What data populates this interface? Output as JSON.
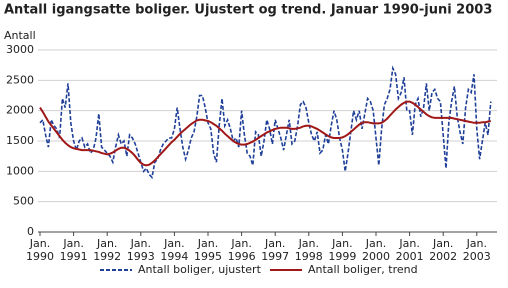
{
  "chart_data": {
    "type": "line",
    "title": "Antall igangsatte boliger. Ujustert og trend. Januar 1990-juni 2003",
    "y_label": "Antall",
    "categories": [
      "Jan. 1990",
      null,
      null,
      null,
      null,
      null,
      null,
      null,
      null,
      null,
      null,
      null,
      "Jan. 1991",
      null,
      null,
      null,
      null,
      null,
      null,
      null,
      null,
      null,
      null,
      null,
      "Jan. 1992",
      null,
      null,
      null,
      null,
      null,
      null,
      null,
      null,
      null,
      null,
      null,
      "Jan. 1993",
      null,
      null,
      null,
      null,
      null,
      null,
      null,
      null,
      null,
      null,
      null,
      "Jan. 1994",
      null,
      null,
      null,
      null,
      null,
      null,
      null,
      null,
      null,
      null,
      null,
      "Jan. 1995",
      null,
      null,
      null,
      null,
      null,
      null,
      null,
      null,
      null,
      null,
      null,
      "Jan. 1996",
      null,
      null,
      null,
      null,
      null,
      null,
      null,
      null,
      null,
      null,
      null,
      "Jan. 1997",
      null,
      null,
      null,
      null,
      null,
      null,
      null,
      null,
      null,
      null,
      null,
      "Jan. 1998",
      null,
      null,
      null,
      null,
      null,
      null,
      null,
      null,
      null,
      null,
      null,
      "Jan. 1999",
      null,
      null,
      null,
      null,
      null,
      null,
      null,
      null,
      null,
      null,
      null,
      "Jan. 2000",
      null,
      null,
      null,
      null,
      null,
      null,
      null,
      null,
      null,
      null,
      null,
      "Jan. 2001",
      null,
      null,
      null,
      null,
      null,
      null,
      null,
      null,
      null,
      null,
      null,
      "Jan. 2002",
      null,
      null,
      null,
      null,
      null,
      null,
      null,
      null,
      null,
      null,
      null,
      "Jan. 2003",
      null,
      null,
      null,
      null,
      null
    ],
    "series": [
      {
        "name": "Antall boliger, ujustert",
        "color": "#1f3f99",
        "dashed": true,
        "values": [
          1800,
          1850,
          1600,
          1400,
          1850,
          1750,
          1700,
          1550,
          2200,
          2050,
          2450,
          1800,
          1500,
          1350,
          1500,
          1550,
          1400,
          1450,
          1300,
          1350,
          1550,
          1950,
          1400,
          1350,
          1300,
          1250,
          1150,
          1400,
          1600,
          1450,
          1500,
          1250,
          1600,
          1550,
          1450,
          1300,
          1150,
          1000,
          1050,
          950,
          900,
          1150,
          1200,
          1350,
          1450,
          1500,
          1550,
          1550,
          1700,
          2050,
          1700,
          1400,
          1200,
          1350,
          1550,
          1650,
          1900,
          2250,
          2250,
          2050,
          1800,
          1700,
          1300,
          1150,
          1750,
          2200,
          1750,
          1850,
          1700,
          1500,
          1550,
          1400,
          2000,
          1600,
          1300,
          1250,
          1100,
          1650,
          1600,
          1250,
          1500,
          1850,
          1700,
          1450,
          1850,
          1700,
          1550,
          1350,
          1600,
          1850,
          1450,
          1500,
          1750,
          2100,
          2150,
          2050,
          1800,
          1600,
          1500,
          1650,
          1300,
          1350,
          1600,
          1450,
          1750,
          2000,
          1850,
          1550,
          1350,
          1000,
          1300,
          1650,
          2000,
          1850,
          2000,
          1700,
          1950,
          2200,
          2150,
          2000,
          1550,
          1100,
          1700,
          2100,
          2200,
          2350,
          2700,
          2600,
          2200,
          2300,
          2550,
          2000,
          2000,
          1600,
          2100,
          2200,
          1900,
          2050,
          2450,
          2000,
          2300,
          2350,
          2200,
          2150,
          1600,
          1050,
          1800,
          2150,
          2400,
          1900,
          1650,
          1450,
          2050,
          2350,
          2300,
          2600,
          1700,
          1200,
          1500,
          1800,
          1600,
          2150
        ]
      },
      {
        "name": "Antall boliger, trend",
        "color": "#a01818",
        "dashed": false,
        "values": [
          2050,
          1980,
          1900,
          1820,
          1760,
          1700,
          1640,
          1580,
          1520,
          1470,
          1430,
          1400,
          1380,
          1370,
          1360,
          1350,
          1350,
          1350,
          1350,
          1340,
          1330,
          1320,
          1300,
          1290,
          1280,
          1290,
          1310,
          1340,
          1370,
          1390,
          1390,
          1370,
          1340,
          1300,
          1250,
          1190,
          1140,
          1110,
          1100,
          1110,
          1140,
          1180,
          1230,
          1280,
          1330,
          1380,
          1430,
          1480,
          1520,
          1570,
          1620,
          1660,
          1700,
          1740,
          1780,
          1810,
          1840,
          1850,
          1850,
          1840,
          1830,
          1810,
          1780,
          1750,
          1710,
          1670,
          1620,
          1580,
          1540,
          1500,
          1470,
          1450,
          1440,
          1440,
          1450,
          1470,
          1490,
          1520,
          1550,
          1580,
          1610,
          1640,
          1660,
          1680,
          1700,
          1710,
          1720,
          1720,
          1720,
          1710,
          1700,
          1700,
          1710,
          1720,
          1740,
          1750,
          1750,
          1740,
          1720,
          1700,
          1670,
          1640,
          1610,
          1580,
          1560,
          1550,
          1550,
          1550,
          1560,
          1580,
          1610,
          1650,
          1690,
          1730,
          1770,
          1800,
          1810,
          1810,
          1800,
          1790,
          1790,
          1790,
          1800,
          1830,
          1870,
          1920,
          1970,
          2020,
          2060,
          2100,
          2130,
          2150,
          2150,
          2130,
          2100,
          2060,
          2020,
          1980,
          1940,
          1910,
          1890,
          1880,
          1880,
          1880,
          1880,
          1880,
          1880,
          1880,
          1870,
          1860,
          1850,
          1840,
          1830,
          1820,
          1810,
          1800,
          1800,
          1800,
          1810,
          1810,
          1820,
          1830
        ]
      }
    ],
    "ylim": [
      0,
      3000
    ],
    "yticks": [
      0,
      500,
      1000,
      1500,
      2000,
      2500,
      3000
    ],
    "grid": true
  }
}
